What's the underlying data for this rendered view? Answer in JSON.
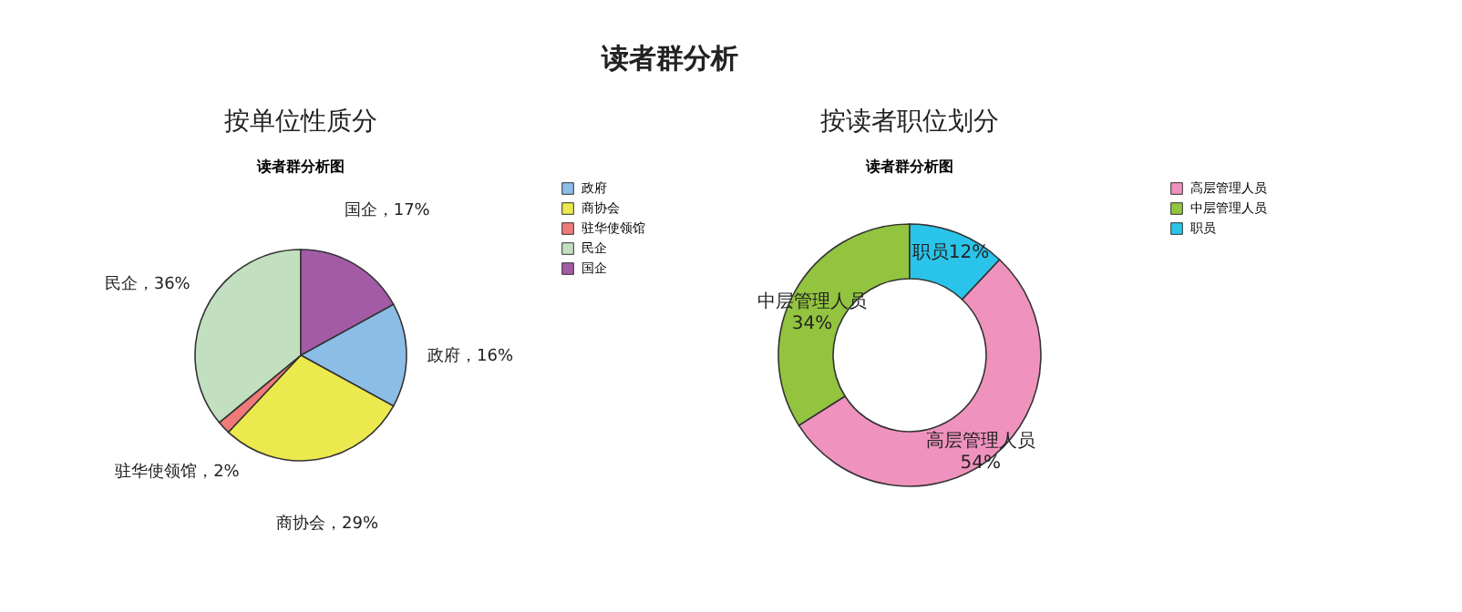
{
  "chart_data": [
    {
      "type": "pie",
      "title": "按单位性质分",
      "subtitle": "读者群分析图",
      "annotations": [
        "读者群分析"
      ],
      "categories": [
        "政府",
        "商协会",
        "驻华使领馆",
        "民企",
        "国企"
      ],
      "values": [
        16,
        29,
        2,
        36,
        17
      ],
      "colors": [
        "#8bbde6",
        "#ece94e",
        "#f07a7a",
        "#c2e0c0",
        "#a35ba6"
      ],
      "value_labels": [
        "政府，16%",
        "商协会，29%",
        "驻华使领馆，2%",
        "民企，36%",
        "国企，17%"
      ],
      "legend": "right"
    },
    {
      "type": "donut",
      "title": "按读者职位划分",
      "subtitle": "读者群分析图",
      "categories": [
        "高层管理人员",
        "中层管理人员",
        "职员"
      ],
      "values": [
        54,
        34,
        12
      ],
      "colors": [
        "#f092be",
        "#92c43f",
        "#2ac4ea"
      ],
      "value_labels": [
        "高层管理人员\n54%",
        "中层管理人员\n34%",
        "职员12%"
      ],
      "legend": "right"
    }
  ]
}
